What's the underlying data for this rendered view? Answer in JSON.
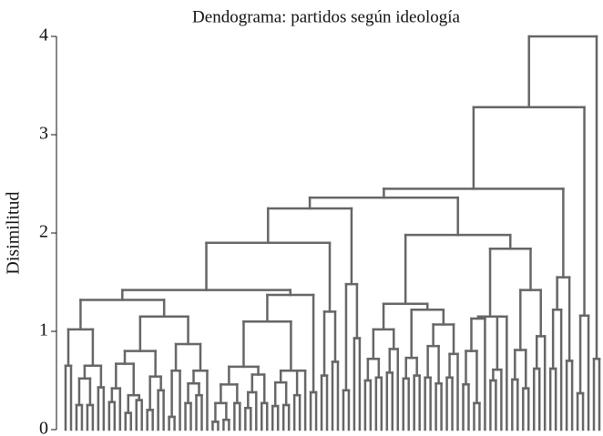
{
  "chart_data": {
    "type": "dendrogram",
    "title": "Dendograma: partidos según ideología",
    "ylabel": "Disimilitud",
    "ylim": [
      0,
      4
    ],
    "yticks": [
      0,
      1,
      2,
      3,
      4
    ],
    "color": "#666666",
    "tree": [
      4.0,
      [
        3.28,
        [
          2.45,
          [
            2.36,
            [
              2.25,
              [
                1.9,
                [
                  1.42,
                  [
                    1.32,
                    [
                      1.02,
                      [
                        0.65,
                        0,
                        0
                      ],
                      [
                        0.65,
                        [
                          0.52,
                          [
                            0.25,
                            0,
                            0
                          ],
                          [
                            0.25,
                            0,
                            0
                          ]
                        ],
                        [
                          0.43,
                          0,
                          0
                        ]
                      ]
                    ],
                    [
                      1.15,
                      [
                        0.8,
                        [
                          0.67,
                          [
                            0.42,
                            [
                              0.28,
                              0,
                              0
                            ],
                            0
                          ],
                          [
                            0.35,
                            [
                              0.17,
                              0,
                              0
                            ],
                            [
                              0.3,
                              0,
                              0
                            ]
                          ]
                        ],
                        [
                          0.54,
                          [
                            0.2,
                            0,
                            0
                          ],
                          [
                            0.4,
                            0,
                            0
                          ]
                        ]
                      ],
                      [
                        0.87,
                        [
                          0.6,
                          [
                            0.13,
                            0,
                            0
                          ],
                          0
                        ],
                        [
                          0.6,
                          [
                            0.47,
                            [
                              0.27,
                              0,
                              0
                            ],
                            [
                              0.35,
                              0,
                              0
                            ]
                          ],
                          0
                        ]
                      ]
                    ]
                  ],
                  [
                    1.37,
                    [
                      1.1,
                      [
                        0.64,
                        [
                          0.46,
                          [
                            0.27,
                            [
                              0.08,
                              0,
                              0
                            ],
                            [
                              0.1,
                              0,
                              0
                            ]
                          ],
                          [
                            0.27,
                            0,
                            0
                          ]
                        ],
                        [
                          0.56,
                          [
                            0.38,
                            [
                              0.22,
                              0,
                              0
                            ],
                            0
                          ],
                          [
                            0.27,
                            0,
                            0
                          ]
                        ]
                      ],
                      [
                        0.6,
                        [
                          0.48,
                          [
                            0.24,
                            0,
                            0
                          ],
                          [
                            0.25,
                            0,
                            0
                          ]
                        ],
                        [
                          0.6,
                          [
                            0.35,
                            0,
                            0
                          ],
                          0
                        ]
                      ]
                    ],
                    [
                      0.38,
                      0,
                      0
                    ]
                  ]
                ],
                [
                  1.2,
                  [
                    0.55,
                    0,
                    0
                  ],
                  [
                    0.69,
                    0,
                    0
                  ]
                ]
              ],
              [
                1.48,
                [
                  0.4,
                  0,
                  0
                ],
                [
                  0.93,
                  0,
                  0
                ]
              ]
            ],
            [
              1.98,
              [
                1.28,
                [
                  1.02,
                  [
                    0.72,
                    [
                      0.5,
                      0,
                      0
                    ],
                    [
                      0.53,
                      0,
                      0
                    ]
                  ],
                  [
                    0.82,
                    [
                      0.58,
                      0,
                      0
                    ],
                    0
                  ]
                ],
                [
                  1.22,
                  [
                    0.73,
                    [
                      0.52,
                      0,
                      0
                    ],
                    [
                      0.55,
                      0,
                      0
                    ]
                  ],
                  [
                    1.07,
                    [
                      0.85,
                      [
                        0.53,
                        0,
                        0
                      ],
                      [
                        0.47,
                        0,
                        0
                      ]
                    ],
                    [
                      0.77,
                      [
                        0.53,
                        0,
                        0
                      ],
                      0
                    ]
                  ]
                ]
              ],
              [
                1.84,
                [
                  1.15,
                  [
                    1.13,
                    [
                      0.8,
                      [
                        0.46,
                        0,
                        0
                      ],
                      [
                        0.27,
                        0,
                        0
                      ]
                    ],
                    0
                  ],
                  [
                    1.15,
                    [
                      0.61,
                      [
                        0.5,
                        0,
                        0
                      ],
                      0
                    ],
                    0
                  ]
                ],
                [
                  1.42,
                  [
                    0.81,
                    [
                      0.51,
                      0,
                      0
                    ],
                    [
                      0.42,
                      0,
                      0
                    ]
                  ],
                  [
                    0.95,
                    [
                      0.62,
                      0,
                      0
                    ],
                    0
                  ]
                ]
              ]
            ]
          ],
          [
            1.55,
            [
              1.22,
              [
                0.62,
                0,
                0
              ],
              0
            ],
            [
              0.7,
              0,
              0
            ]
          ]
        ],
        [
          1.16,
          [
            0.37,
            0,
            0
          ],
          0
        ]
      ],
      [
        0.72,
        0,
        0
      ]
    ]
  }
}
